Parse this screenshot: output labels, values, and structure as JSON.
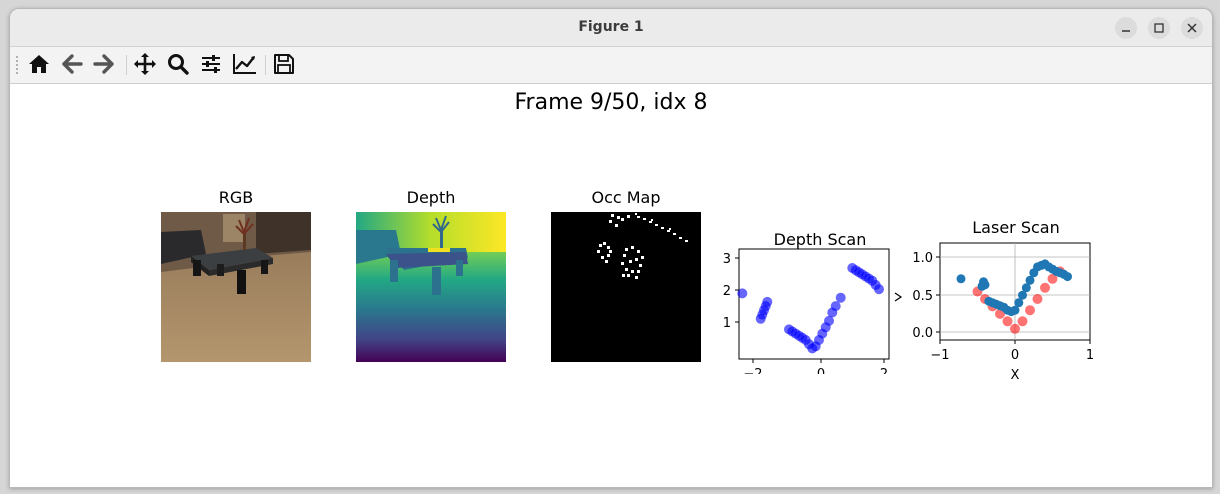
{
  "window": {
    "title": "Figure 1"
  },
  "figure": {
    "suptitle": "Frame 9/50, idx 8",
    "panels": {
      "rgb": {
        "title": "RGB"
      },
      "depth": {
        "title": "Depth"
      },
      "occ": {
        "title": "Occ Map"
      },
      "depth_scan": {
        "title": "Depth Scan",
        "xticks": [
          "−2",
          "0",
          "2"
        ],
        "yticks": [
          "1",
          "2",
          "3"
        ]
      },
      "laser_scan": {
        "title": "Laser Scan",
        "xlabel": "X",
        "xticks": [
          "−1",
          "0",
          "1"
        ],
        "yticks": [
          "0.0",
          "0.5",
          "1.0"
        ]
      }
    }
  },
  "chart_data": [
    {
      "type": "scatter",
      "title": "Depth Scan",
      "xlim": [
        -2.2,
        2.3
      ],
      "ylim": [
        0.6,
        3.2
      ],
      "color": "#0000ff",
      "x": [
        -2.1,
        -1.55,
        -1.5,
        -1.45,
        -1.4,
        -1.35,
        -0.7,
        -0.6,
        -0.5,
        -0.4,
        -0.3,
        -0.2,
        -0.1,
        0.0,
        0.1,
        0.2,
        0.3,
        0.4,
        0.5,
        0.6,
        0.7,
        0.85,
        1.2,
        1.3,
        1.4,
        1.5,
        1.6,
        1.7,
        1.8,
        1.9,
        2.0
      ],
      "y": [
        2.15,
        1.55,
        1.65,
        1.75,
        1.85,
        1.95,
        1.3,
        1.25,
        1.2,
        1.15,
        1.1,
        1.05,
        0.95,
        0.85,
        0.9,
        1.05,
        1.2,
        1.35,
        1.5,
        1.7,
        1.85,
        2.05,
        2.75,
        2.7,
        2.65,
        2.6,
        2.55,
        2.5,
        2.45,
        2.35,
        2.25
      ]
    },
    {
      "type": "scatter",
      "title": "Laser Scan",
      "xlabel": "X",
      "xlim": [
        -1,
        1
      ],
      "ylim": [
        -0.1,
        1.2
      ],
      "grid": true,
      "series": [
        {
          "color": "#1f77b4",
          "x": [
            -0.72,
            -0.44,
            -0.42,
            -0.4,
            -0.35,
            -0.3,
            -0.25,
            -0.2,
            -0.15,
            -0.1,
            -0.05,
            0.0,
            0.05,
            0.1,
            0.15,
            0.2,
            0.25,
            0.3,
            0.35,
            0.4,
            0.45,
            0.5,
            0.55,
            0.6,
            0.65,
            0.7
          ],
          "y": [
            0.72,
            0.62,
            0.68,
            0.64,
            0.42,
            0.4,
            0.38,
            0.36,
            0.34,
            0.3,
            0.28,
            0.3,
            0.4,
            0.5,
            0.6,
            0.7,
            0.8,
            0.88,
            0.9,
            0.92,
            0.88,
            0.85,
            0.82,
            0.8,
            0.78,
            0.75
          ]
        },
        {
          "color": "#ff0000",
          "x": [
            -0.5,
            -0.4,
            -0.3,
            -0.2,
            -0.1,
            0.0,
            0.1,
            0.2,
            0.3,
            0.4,
            0.5,
            0.6
          ],
          "y": [
            0.55,
            0.45,
            0.35,
            0.25,
            0.15,
            0.05,
            0.15,
            0.3,
            0.45,
            0.6,
            0.72,
            0.82
          ]
        }
      ]
    }
  ]
}
